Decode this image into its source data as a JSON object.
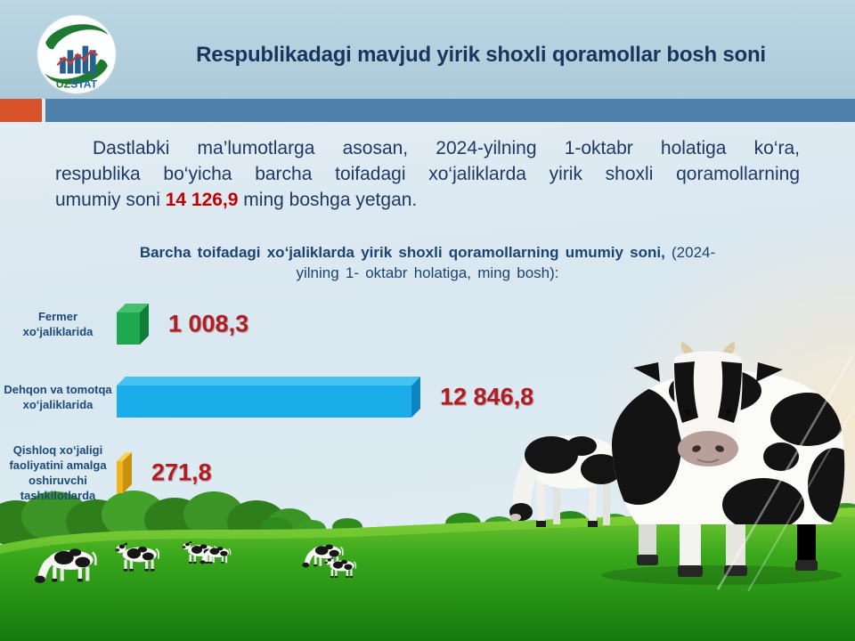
{
  "logo": {
    "uz": "UZ",
    "stat": "STAT"
  },
  "header": {
    "title": "Respublikadagi mavjud yirik shoxli qoramollar bosh soni"
  },
  "intro": {
    "line1": "Dastlabki ma’lumotlarga asosan, 2024-yilning 1-oktabr holatiga ko‘ra,",
    "line2": "respublika bo‘yicha barcha toifadagi xo‘jaliklarda yirik shoxli qoramollarning",
    "line3_before": "umumiy soni ",
    "total_value": "14 126,9",
    "line3_after": " ming boshga yetgan."
  },
  "chart_data": {
    "type": "bar",
    "orientation": "horizontal",
    "title_bold": "Barcha toifadagi xo‘jaliklarda yirik shoxli qoramollarning umumiy soni,",
    "title_regular": " (2024- yilning 1- oktabr holatiga, ming bosh):",
    "unit": "ming bosh",
    "categories": [
      "Fermer xo‘jaliklarida",
      "Dehqon va tomotqa xo‘jaliklarida",
      "Qishloq xo‘jaligi faoliyatini amalga oshiruvchi tashkilotlarda"
    ],
    "values": [
      1008.3,
      12846.8,
      271.8
    ],
    "value_labels": [
      "1 008,3",
      "12 846,8",
      "271,8"
    ],
    "value_color": "#b21d22",
    "bar_colors": [
      {
        "front": "#1ea951",
        "top": "#44bf6e",
        "side": "#0e7e3a"
      },
      {
        "front": "#1badea",
        "top": "#44c3f1",
        "side": "#0d85c0"
      },
      {
        "front": "#f0b41d",
        "top": "#f7d156",
        "side": "#c9920e"
      }
    ],
    "xlim": [
      0,
      13000
    ],
    "legend_position": "none",
    "grid": false
  },
  "colors": {
    "accent_orange": "#d8532a",
    "band_blue": "#4d80aa",
    "title_navy": "#17365d",
    "text_navy": "#1f3864",
    "highlight_red": "#c00000",
    "value_red": "#b21d22",
    "header_bg": "#b3cfdd"
  }
}
